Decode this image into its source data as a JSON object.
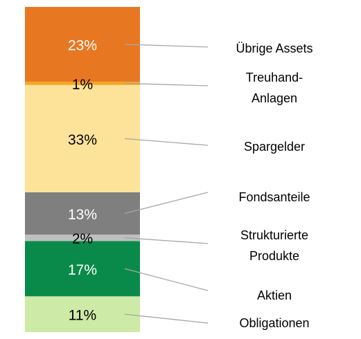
{
  "chart_data": {
    "type": "stacked-bar",
    "categories": [
      null
    ],
    "ylim": [
      0,
      100
    ],
    "series": [
      {
        "name": "Obligationen",
        "color": "#cdeaa6",
        "values": [
          11
        ],
        "value_labels": [
          "11%"
        ]
      },
      {
        "name": "Aktien",
        "color": "#0a8a4a",
        "values": [
          17
        ],
        "value_labels": [
          "17%"
        ]
      },
      {
        "name": "Strukturierte\nProdukte",
        "color": "#bfbfbf",
        "values": [
          2
        ],
        "value_labels": [
          "2%"
        ]
      },
      {
        "name": "Fondsanteile",
        "color": "#7f7f7f",
        "values": [
          13
        ],
        "value_labels": [
          "13%"
        ]
      },
      {
        "name": "Spargelder",
        "color": "#fde29a",
        "values": [
          33
        ],
        "value_labels": [
          "33%"
        ]
      },
      {
        "name": "Treuhand-\nAnlagen",
        "color": "#f5a623",
        "values": [
          1
        ],
        "value_labels": [
          "1%"
        ]
      },
      {
        "name": "Übrige Assets",
        "color": "#e87722",
        "values": [
          23
        ],
        "value_labels": [
          "23%"
        ]
      }
    ]
  }
}
